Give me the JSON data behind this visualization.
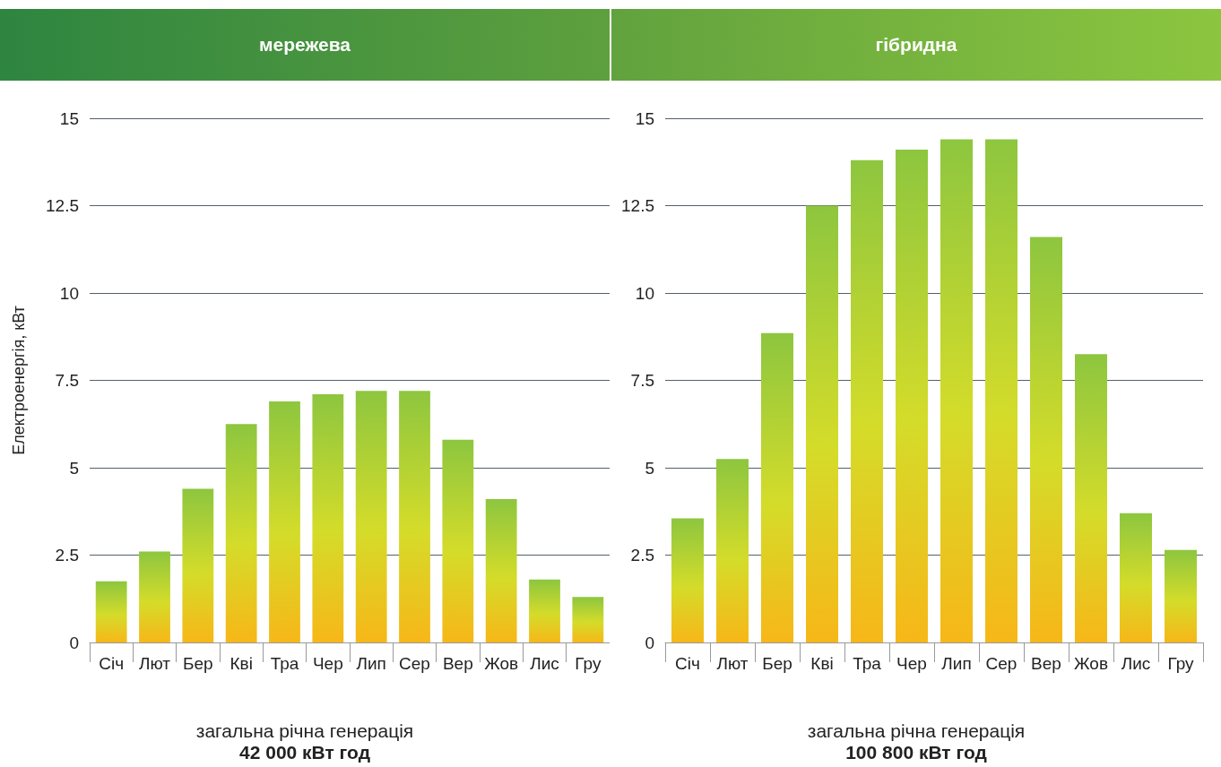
{
  "chart_data": [
    {
      "type": "bar",
      "title": "мережева",
      "ylabel": "Електроенергія, кВт",
      "categories": [
        "Січ",
        "Лют",
        "Бер",
        "Кві",
        "Тра",
        "Чер",
        "Лип",
        "Сер",
        "Вер",
        "Жов",
        "Лис",
        "Гру"
      ],
      "series": [
        {
          "color": "#8dc63f",
          "values": [
            1.75,
            2.6,
            4.4,
            6.25,
            6.9,
            7.1,
            7.2,
            7.2,
            5.8,
            4.1,
            1.8,
            1.3
          ]
        }
      ],
      "ylim": [
        0,
        15
      ],
      "yticks": [
        0,
        2.5,
        5,
        7.5,
        10,
        12.5,
        15
      ],
      "grid": "y",
      "annotations": [
        "загальна річна генерація",
        "42 000 кВт год"
      ]
    },
    {
      "type": "bar",
      "title": "гібридна",
      "categories": [
        "Січ",
        "Лют",
        "Бер",
        "Кві",
        "Тра",
        "Чер",
        "Лип",
        "Сер",
        "Вер",
        "Жов",
        "Лис",
        "Гру"
      ],
      "series": [
        {
          "color": "#8dc63f",
          "values": [
            3.55,
            5.25,
            8.85,
            12.5,
            13.8,
            14.1,
            14.4,
            14.4,
            11.6,
            8.25,
            3.7,
            2.65
          ]
        }
      ],
      "ylim": [
        0,
        15
      ],
      "yticks": [
        0,
        2.5,
        5,
        7.5,
        10,
        12.5,
        15
      ],
      "grid": "y",
      "annotations": [
        "загальна річна генерація",
        "100 800 кВт год"
      ]
    }
  ]
}
